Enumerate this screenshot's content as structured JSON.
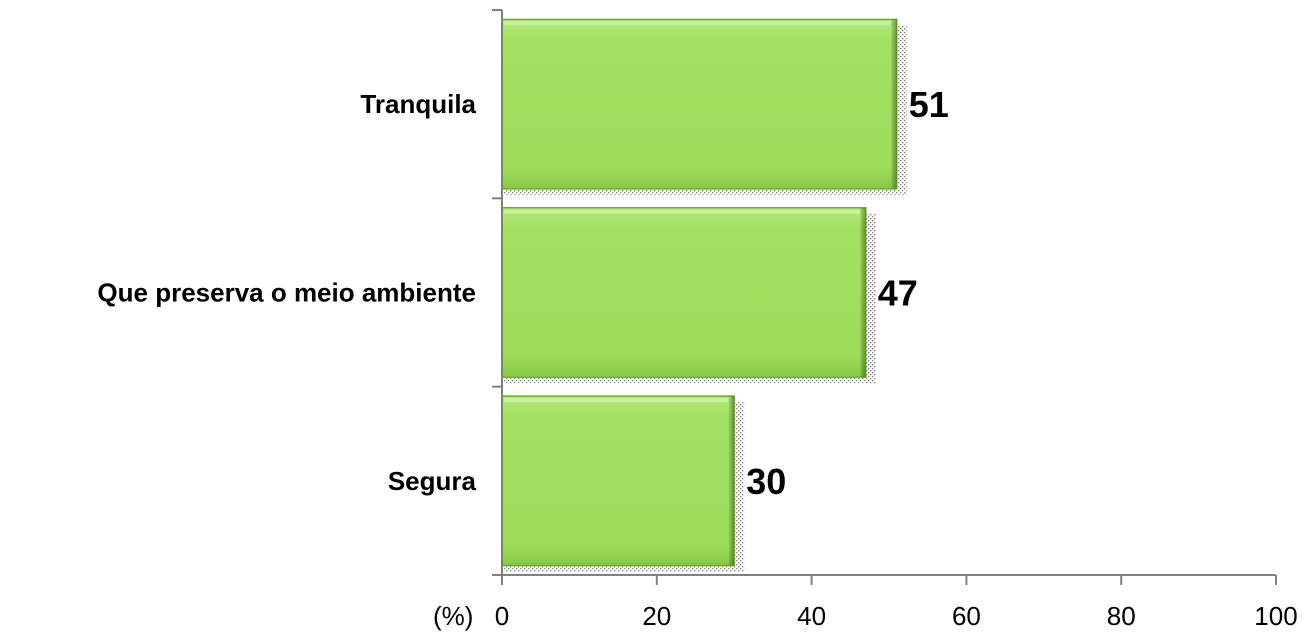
{
  "chart_data": {
    "type": "bar",
    "orientation": "horizontal",
    "categories": [
      "Tranquila",
      "Que preserva o meio ambiente",
      "Segura"
    ],
    "values": [
      51,
      47,
      30
    ],
    "data_labels": [
      "51",
      "47",
      "30"
    ],
    "x_unit_label": "(%)",
    "xlim": [
      0,
      100
    ],
    "x_ticks": [
      0,
      20,
      40,
      60,
      80,
      100
    ],
    "x_tick_labels": [
      "0",
      "20",
      "40",
      "60",
      "80",
      "100"
    ],
    "grid": false,
    "legend": "none",
    "bar_color": "#9ede5a",
    "bar_edge_color": "#6fae2c"
  }
}
